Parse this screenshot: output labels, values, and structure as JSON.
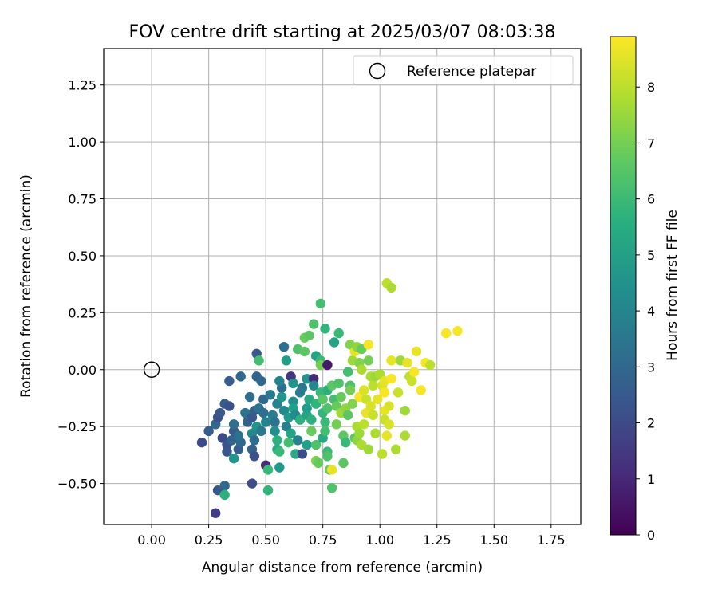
{
  "chart_data": {
    "type": "scatter",
    "title": "FOV centre drift starting at 2025/03/07 08:03:38",
    "xlabel": "Angular distance from reference (arcmin)",
    "ylabel": "Rotation from reference (arcmin)",
    "colorbar_label": "Hours from first FF file",
    "xlim": [
      -0.21,
      1.88
    ],
    "ylim": [
      -0.68,
      1.41
    ],
    "clim": [
      0,
      8.9
    ],
    "xticks": [
      "0.00",
      "0.25",
      "0.50",
      "0.75",
      "1.00",
      "1.25",
      "1.50",
      "1.75"
    ],
    "xtick_values": [
      0,
      0.25,
      0.5,
      0.75,
      1.0,
      1.25,
      1.5,
      1.75
    ],
    "yticks": [
      "−0.50",
      "−0.25",
      "0.00",
      "0.25",
      "0.50",
      "0.75",
      "1.00",
      "1.25"
    ],
    "ytick_values": [
      -0.5,
      -0.25,
      0,
      0.25,
      0.5,
      0.75,
      1.0,
      1.25
    ],
    "cticks": [
      "0",
      "1",
      "2",
      "3",
      "4",
      "5",
      "6",
      "7",
      "8"
    ],
    "ctick_values": [
      0,
      1,
      2,
      3,
      4,
      5,
      6,
      7,
      8
    ],
    "grid": true,
    "colormap": "viridis",
    "legend": {
      "position": "top-right",
      "entries": [
        {
          "label": "Reference platepar",
          "marker": "open-circle"
        }
      ]
    },
    "reference_point": {
      "x": 0,
      "y": 0
    },
    "points": [
      {
        "x": 0.22,
        "y": -0.32,
        "t": 2.0
      },
      {
        "x": 0.25,
        "y": -0.27,
        "t": 2.6
      },
      {
        "x": 0.28,
        "y": -0.24,
        "t": 3.0
      },
      {
        "x": 0.29,
        "y": -0.21,
        "t": 2.2
      },
      {
        "x": 0.3,
        "y": -0.19,
        "t": 2.4
      },
      {
        "x": 0.32,
        "y": -0.15,
        "t": 2.6
      },
      {
        "x": 0.34,
        "y": -0.16,
        "t": 2.2
      },
      {
        "x": 0.31,
        "y": -0.3,
        "t": 2.0
      },
      {
        "x": 0.33,
        "y": -0.33,
        "t": 2.3
      },
      {
        "x": 0.35,
        "y": -0.31,
        "t": 2.8
      },
      {
        "x": 0.36,
        "y": -0.27,
        "t": 2.5
      },
      {
        "x": 0.36,
        "y": -0.24,
        "t": 3.2
      },
      {
        "x": 0.33,
        "y": -0.36,
        "t": 2.4
      },
      {
        "x": 0.36,
        "y": -0.39,
        "t": 4.6
      },
      {
        "x": 0.38,
        "y": -0.35,
        "t": 2.6
      },
      {
        "x": 0.39,
        "y": -0.32,
        "t": 3.0
      },
      {
        "x": 0.38,
        "y": -0.29,
        "t": 3.3
      },
      {
        "x": 0.29,
        "y": -0.53,
        "t": 2.4
      },
      {
        "x": 0.32,
        "y": -0.51,
        "t": 3.0
      },
      {
        "x": 0.32,
        "y": -0.55,
        "t": 5.6
      },
      {
        "x": 0.28,
        "y": -0.63,
        "t": 1.6
      },
      {
        "x": 0.34,
        "y": -0.05,
        "t": 2.6
      },
      {
        "x": 0.39,
        "y": -0.03,
        "t": 3.0
      },
      {
        "x": 0.41,
        "y": -0.19,
        "t": 3.4
      },
      {
        "x": 0.42,
        "y": -0.23,
        "t": 2.8
      },
      {
        "x": 0.43,
        "y": -0.12,
        "t": 3.2
      },
      {
        "x": 0.44,
        "y": -0.21,
        "t": 2.4
      },
      {
        "x": 0.45,
        "y": -0.18,
        "t": 2.6
      },
      {
        "x": 0.44,
        "y": -0.28,
        "t": 4.2
      },
      {
        "x": 0.45,
        "y": -0.31,
        "t": 3.1
      },
      {
        "x": 0.46,
        "y": -0.25,
        "t": 4.6
      },
      {
        "x": 0.44,
        "y": -0.35,
        "t": 2.8
      },
      {
        "x": 0.45,
        "y": -0.38,
        "t": 2.2
      },
      {
        "x": 0.44,
        "y": -0.5,
        "t": 2.0
      },
      {
        "x": 0.46,
        "y": 0.07,
        "t": 2.5
      },
      {
        "x": 0.47,
        "y": 0.04,
        "t": 6.2
      },
      {
        "x": 0.46,
        "y": -0.03,
        "t": 2.8
      },
      {
        "x": 0.48,
        "y": -0.05,
        "t": 3.0
      },
      {
        "x": 0.47,
        "y": -0.17,
        "t": 3.4
      },
      {
        "x": 0.49,
        "y": -0.19,
        "t": 3.2
      },
      {
        "x": 0.49,
        "y": -0.13,
        "t": 3.0
      },
      {
        "x": 0.48,
        "y": -0.27,
        "t": 3.6
      },
      {
        "x": 0.5,
        "y": -0.23,
        "t": 4.0
      },
      {
        "x": 0.5,
        "y": -0.42,
        "t": 1.2
      },
      {
        "x": 0.51,
        "y": -0.44,
        "t": 6.0
      },
      {
        "x": 0.51,
        "y": -0.53,
        "t": 5.8
      },
      {
        "x": 0.52,
        "y": -0.11,
        "t": 3.6
      },
      {
        "x": 0.53,
        "y": -0.2,
        "t": 3.8
      },
      {
        "x": 0.54,
        "y": -0.23,
        "t": 3.4
      },
      {
        "x": 0.55,
        "y": -0.15,
        "t": 4.0
      },
      {
        "x": 0.54,
        "y": -0.27,
        "t": 4.4
      },
      {
        "x": 0.55,
        "y": -0.31,
        "t": 5.6
      },
      {
        "x": 0.55,
        "y": -0.35,
        "t": 5.4
      },
      {
        "x": 0.56,
        "y": -0.36,
        "t": 6.0
      },
      {
        "x": 0.56,
        "y": -0.43,
        "t": 4.8
      },
      {
        "x": 0.57,
        "y": -0.08,
        "t": 3.2
      },
      {
        "x": 0.56,
        "y": -0.05,
        "t": 4.0
      },
      {
        "x": 0.57,
        "y": -0.12,
        "t": 4.6
      },
      {
        "x": 0.58,
        "y": -0.18,
        "t": 4.2
      },
      {
        "x": 0.58,
        "y": 0.1,
        "t": 3.2
      },
      {
        "x": 0.59,
        "y": 0.04,
        "t": 5.0
      },
      {
        "x": 0.59,
        "y": -0.25,
        "t": 3.8
      },
      {
        "x": 0.6,
        "y": -0.21,
        "t": 4.8
      },
      {
        "x": 0.6,
        "y": -0.32,
        "t": 6.2
      },
      {
        "x": 0.61,
        "y": -0.28,
        "t": 5.2
      },
      {
        "x": 0.61,
        "y": -0.03,
        "t": 1.4
      },
      {
        "x": 0.62,
        "y": -0.14,
        "t": 4.4
      },
      {
        "x": 0.62,
        "y": -0.17,
        "t": 5.0
      },
      {
        "x": 0.63,
        "y": -0.2,
        "t": 4.2
      },
      {
        "x": 0.63,
        "y": -0.37,
        "t": 5.4
      },
      {
        "x": 0.62,
        "y": -0.06,
        "t": 4.6
      },
      {
        "x": 0.64,
        "y": 0.09,
        "t": 6.4
      },
      {
        "x": 0.64,
        "y": -0.31,
        "t": 4.0
      },
      {
        "x": 0.65,
        "y": -0.22,
        "t": 5.6
      },
      {
        "x": 0.65,
        "y": -0.1,
        "t": 3.8
      },
      {
        "x": 0.66,
        "y": -0.37,
        "t": 2.0
      },
      {
        "x": 0.66,
        "y": -0.08,
        "t": 3.6
      },
      {
        "x": 0.67,
        "y": 0.08,
        "t": 6.6
      },
      {
        "x": 0.67,
        "y": 0.14,
        "t": 6.8
      },
      {
        "x": 0.68,
        "y": -0.04,
        "t": 4.6
      },
      {
        "x": 0.68,
        "y": -0.17,
        "t": 4.8
      },
      {
        "x": 0.68,
        "y": -0.2,
        "t": 5.2
      },
      {
        "x": 0.68,
        "y": -0.33,
        "t": 5.0
      },
      {
        "x": 0.69,
        "y": 0.15,
        "t": 6.6
      },
      {
        "x": 0.69,
        "y": -0.13,
        "t": 5.4
      },
      {
        "x": 0.7,
        "y": -0.22,
        "t": 5.6
      },
      {
        "x": 0.7,
        "y": -0.27,
        "t": 6.8
      },
      {
        "x": 0.71,
        "y": -0.04,
        "t": 1.0
      },
      {
        "x": 0.71,
        "y": -0.07,
        "t": 4.2
      },
      {
        "x": 0.71,
        "y": 0.2,
        "t": 6.4
      },
      {
        "x": 0.72,
        "y": 0.06,
        "t": 5.2
      },
      {
        "x": 0.72,
        "y": -0.15,
        "t": 5.8
      },
      {
        "x": 0.72,
        "y": -0.33,
        "t": 6.4
      },
      {
        "x": 0.72,
        "y": -0.4,
        "t": 7.2
      },
      {
        "x": 0.73,
        "y": -0.41,
        "t": 6.8
      },
      {
        "x": 0.74,
        "y": 0.29,
        "t": 6.2
      },
      {
        "x": 0.74,
        "y": 0.04,
        "t": 6.0
      },
      {
        "x": 0.74,
        "y": 0.02,
        "t": 7.0
      },
      {
        "x": 0.74,
        "y": -0.1,
        "t": 6.0
      },
      {
        "x": 0.75,
        "y": -0.13,
        "t": 6.6
      },
      {
        "x": 0.75,
        "y": -0.19,
        "t": 5.8
      },
      {
        "x": 0.75,
        "y": -0.3,
        "t": 5.4
      },
      {
        "x": 0.76,
        "y": 0.18,
        "t": 5.8
      },
      {
        "x": 0.76,
        "y": -0.23,
        "t": 6.0
      },
      {
        "x": 0.76,
        "y": -0.27,
        "t": 6.2
      },
      {
        "x": 0.77,
        "y": 0.02,
        "t": 0.6
      },
      {
        "x": 0.77,
        "y": -0.09,
        "t": 5.6
      },
      {
        "x": 0.77,
        "y": -0.17,
        "t": 6.4
      },
      {
        "x": 0.77,
        "y": -0.36,
        "t": 6.0
      },
      {
        "x": 0.77,
        "y": -0.38,
        "t": 6.4
      },
      {
        "x": 0.78,
        "y": -0.44,
        "t": 6.8
      },
      {
        "x": 0.79,
        "y": -0.44,
        "t": 8.6
      },
      {
        "x": 0.79,
        "y": -0.52,
        "t": 6.4
      },
      {
        "x": 0.79,
        "y": -0.07,
        "t": 6.6
      },
      {
        "x": 0.8,
        "y": 0.12,
        "t": 5.2
      },
      {
        "x": 0.8,
        "y": -0.13,
        "t": 6.2
      },
      {
        "x": 0.81,
        "y": -0.16,
        "t": 6.8
      },
      {
        "x": 0.81,
        "y": -0.24,
        "t": 7.0
      },
      {
        "x": 0.82,
        "y": 0.16,
        "t": 6.0
      },
      {
        "x": 0.82,
        "y": -0.06,
        "t": 6.4
      },
      {
        "x": 0.83,
        "y": -0.12,
        "t": 6.8
      },
      {
        "x": 0.83,
        "y": -0.19,
        "t": 7.6
      },
      {
        "x": 0.84,
        "y": -0.29,
        "t": 6.6
      },
      {
        "x": 0.84,
        "y": -0.41,
        "t": 6.6
      },
      {
        "x": 0.85,
        "y": -0.17,
        "t": 7.4
      },
      {
        "x": 0.85,
        "y": -0.32,
        "t": 6.0
      },
      {
        "x": 0.86,
        "y": -0.01,
        "t": 6.2
      },
      {
        "x": 0.86,
        "y": -0.2,
        "t": 6.6
      },
      {
        "x": 0.87,
        "y": 0.11,
        "t": 7.2
      },
      {
        "x": 0.87,
        "y": -0.07,
        "t": 6.4
      },
      {
        "x": 0.87,
        "y": -0.09,
        "t": 7.0
      },
      {
        "x": 0.88,
        "y": 0.04,
        "t": 7.6
      },
      {
        "x": 0.88,
        "y": -0.15,
        "t": 7.2
      },
      {
        "x": 0.89,
        "y": 0.08,
        "t": 8.6
      },
      {
        "x": 0.89,
        "y": -0.3,
        "t": 6.6
      },
      {
        "x": 0.9,
        "y": 0.1,
        "t": 7.4
      },
      {
        "x": 0.9,
        "y": -0.25,
        "t": 7.8
      },
      {
        "x": 0.9,
        "y": -0.31,
        "t": 7.4
      },
      {
        "x": 0.91,
        "y": 0.03,
        "t": 7.2
      },
      {
        "x": 0.91,
        "y": -0.12,
        "t": 8.8
      },
      {
        "x": 0.91,
        "y": -0.28,
        "t": 7.6
      },
      {
        "x": 0.92,
        "y": 0.09,
        "t": 6.8
      },
      {
        "x": 0.92,
        "y": -0.0,
        "t": 7.8
      },
      {
        "x": 0.92,
        "y": -0.33,
        "t": 7.8
      },
      {
        "x": 0.93,
        "y": -0.24,
        "t": 8.0
      },
      {
        "x": 0.93,
        "y": -0.09,
        "t": 8.4
      },
      {
        "x": 0.94,
        "y": -0.19,
        "t": 8.6
      },
      {
        "x": 0.94,
        "y": -0.13,
        "t": 8.2
      },
      {
        "x": 0.95,
        "y": 0.11,
        "t": 8.8
      },
      {
        "x": 0.95,
        "y": 0.04,
        "t": 7.0
      },
      {
        "x": 0.95,
        "y": -0.35,
        "t": 7.6
      },
      {
        "x": 0.96,
        "y": -0.03,
        "t": 7.8
      },
      {
        "x": 0.96,
        "y": -0.16,
        "t": 8.4
      },
      {
        "x": 0.97,
        "y": -0.07,
        "t": 8.0
      },
      {
        "x": 0.97,
        "y": -0.2,
        "t": 8.2
      },
      {
        "x": 0.98,
        "y": -0.03,
        "t": 7.6
      },
      {
        "x": 0.98,
        "y": -0.28,
        "t": 7.8
      },
      {
        "x": 0.99,
        "y": -0.13,
        "t": 8.6
      },
      {
        "x": 1.0,
        "y": -0.02,
        "t": 7.8
      },
      {
        "x": 1.01,
        "y": -0.07,
        "t": 8.4
      },
      {
        "x": 1.01,
        "y": -0.37,
        "t": 8.0
      },
      {
        "x": 1.02,
        "y": -0.1,
        "t": 8.8
      },
      {
        "x": 1.02,
        "y": -0.18,
        "t": 8.6
      },
      {
        "x": 1.02,
        "y": -0.22,
        "t": 8.2
      },
      {
        "x": 1.02,
        "y": -0.05,
        "t": 8.6
      },
      {
        "x": 1.03,
        "y": 0.38,
        "t": 8.0
      },
      {
        "x": 1.03,
        "y": -0.29,
        "t": 8.6
      },
      {
        "x": 1.04,
        "y": -0.16,
        "t": 8.4
      },
      {
        "x": 1.04,
        "y": -0.24,
        "t": 8.4
      },
      {
        "x": 1.05,
        "y": 0.36,
        "t": 7.8
      },
      {
        "x": 1.05,
        "y": 0.04,
        "t": 8.6
      },
      {
        "x": 1.05,
        "y": -0.04,
        "t": 8.8
      },
      {
        "x": 1.07,
        "y": -0.35,
        "t": 7.8
      },
      {
        "x": 1.08,
        "y": -0.1,
        "t": 8.2
      },
      {
        "x": 1.09,
        "y": 0.04,
        "t": 7.6
      },
      {
        "x": 1.11,
        "y": -0.29,
        "t": 7.8
      },
      {
        "x": 1.11,
        "y": -0.18,
        "t": 7.6
      },
      {
        "x": 1.12,
        "y": 0.03,
        "t": 8.6
      },
      {
        "x": 1.13,
        "y": -0.03,
        "t": 8.0
      },
      {
        "x": 1.14,
        "y": -0.05,
        "t": 8.2
      },
      {
        "x": 1.15,
        "y": -0.01,
        "t": 8.8
      },
      {
        "x": 1.16,
        "y": 0.08,
        "t": 8.6
      },
      {
        "x": 1.18,
        "y": -0.09,
        "t": 8.8
      },
      {
        "x": 1.2,
        "y": 0.03,
        "t": 8.8
      },
      {
        "x": 1.22,
        "y": 0.02,
        "t": 8.0
      },
      {
        "x": 1.29,
        "y": 0.16,
        "t": 8.8
      },
      {
        "x": 1.34,
        "y": 0.17,
        "t": 8.8
      }
    ]
  }
}
